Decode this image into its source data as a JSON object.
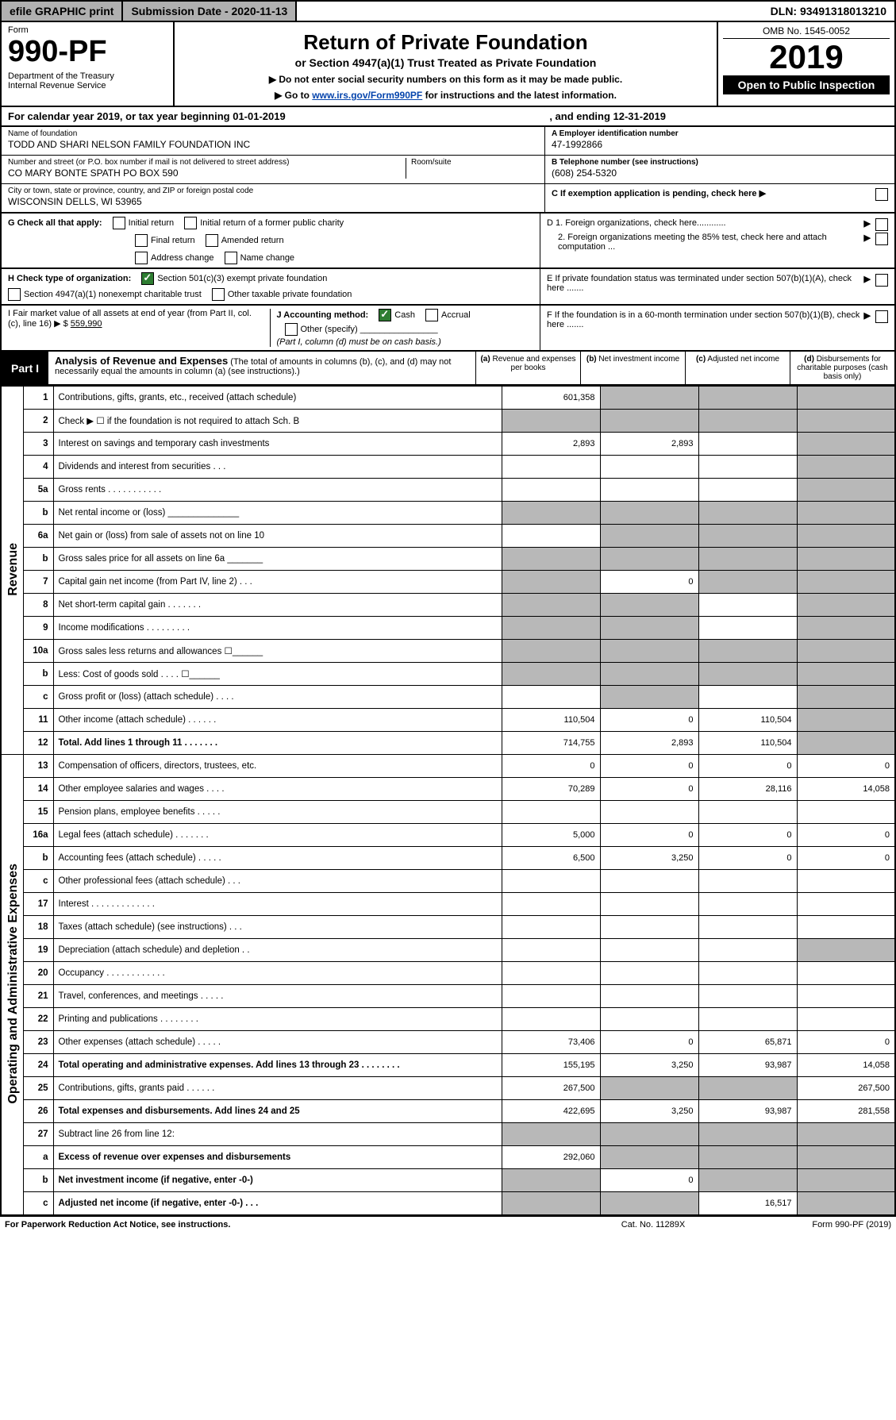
{
  "topbar": {
    "efile": "efile GRAPHIC print",
    "submission": "Submission Date - 2020-11-13",
    "dln": "DLN: 93491318013210"
  },
  "header": {
    "form_label": "Form",
    "form_no": "990-PF",
    "dept1": "Department of the Treasury",
    "dept2": "Internal Revenue Service",
    "title": "Return of Private Foundation",
    "subtitle": "or Section 4947(a)(1) Trust Treated as Private Foundation",
    "note1": "▶ Do not enter social security numbers on this form as it may be made public.",
    "note2_pre": "▶ Go to ",
    "note2_link": "www.irs.gov/Form990PF",
    "note2_post": " for instructions and the latest information.",
    "omb": "OMB No. 1545-0052",
    "year": "2019",
    "otp": "Open to Public Inspection"
  },
  "calrow": {
    "pre": "For calendar year 2019, or tax year beginning 01-01-2019",
    "end": ", and ending 12-31-2019"
  },
  "id": {
    "name_lbl": "Name of foundation",
    "name": "TODD AND SHARI NELSON FAMILY FOUNDATION INC",
    "addr_lbl": "Number and street (or P.O. box number if mail is not delivered to street address)",
    "addr": "CO MARY BONTE SPATH PO BOX 590",
    "room_lbl": "Room/suite",
    "city_lbl": "City or town, state or province, country, and ZIP or foreign postal code",
    "city": "WISCONSIN DELLS, WI  53965",
    "ein_lbl": "A Employer identification number",
    "ein": "47-1992866",
    "tel_lbl": "B Telephone number (see instructions)",
    "tel": "(608) 254-5320",
    "c_lbl": "C If exemption application is pending, check here ▶"
  },
  "g": {
    "label": "G Check all that apply:",
    "initial": "Initial return",
    "initial_former": "Initial return of a former public charity",
    "final": "Final return",
    "amended": "Amended return",
    "addrchg": "Address change",
    "namechg": "Name change"
  },
  "h": {
    "label": "H Check type of organization:",
    "s501": "Section 501(c)(3) exempt private foundation",
    "s4947": "Section 4947(a)(1) nonexempt charitable trust",
    "other": "Other taxable private foundation"
  },
  "d": {
    "d1": "D 1. Foreign organizations, check here............",
    "d2": "2. Foreign organizations meeting the 85% test, check here and attach computation ...",
    "e": "E  If private foundation status was terminated under section 507(b)(1)(A), check here .......",
    "f": "F  If the foundation is in a 60-month termination under section 507(b)(1)(B), check here ......."
  },
  "ij": {
    "i_lbl": "I Fair market value of all assets at end of year (from Part II, col. (c), line 16) ▶ $",
    "i_val": "559,990",
    "j_lbl": "J Accounting method:",
    "cash": "Cash",
    "accrual": "Accrual",
    "other": "Other (specify)",
    "note": "(Part I, column (d) must be on cash basis.)"
  },
  "part1": {
    "label": "Part I",
    "title": "Analysis of Revenue and Expenses",
    "sub": "(The total of amounts in columns (b), (c), and (d) may not necessarily equal the amounts in column (a) (see instructions).)",
    "col_a": "Revenue and expenses per books",
    "col_b": "Net investment income",
    "col_c": "Adjusted net income",
    "col_d": "Disbursements for charitable purposes (cash basis only)"
  },
  "sections": {
    "revenue": "Revenue",
    "expenses": "Operating and Administrative Expenses"
  },
  "rows": {
    "r1": {
      "n": "1",
      "d": "Contributions, gifts, grants, etc., received (attach schedule)",
      "a": "601,358",
      "bg": [
        "",
        "g",
        "g",
        "g"
      ]
    },
    "r2": {
      "n": "2",
      "d": "Check ▶ ☐ if the foundation is not required to attach Sch. B",
      "bg": [
        "g",
        "g",
        "g",
        "g"
      ]
    },
    "r3": {
      "n": "3",
      "d": "Interest on savings and temporary cash investments",
      "a": "2,893",
      "b": "2,893",
      "bg": [
        "",
        "",
        "",
        "g"
      ]
    },
    "r4": {
      "n": "4",
      "d": "Dividends and interest from securities   .   .   .",
      "bg": [
        "",
        "",
        "",
        "g"
      ]
    },
    "r5a": {
      "n": "5a",
      "d": "Gross rents   .   .   .   .   .   .   .   .   .   .   .",
      "bg": [
        "",
        "",
        "",
        "g"
      ]
    },
    "r5b": {
      "n": "b",
      "d": "Net rental income or (loss) ______________",
      "bg": [
        "g",
        "g",
        "g",
        "g"
      ]
    },
    "r6a": {
      "n": "6a",
      "d": "Net gain or (loss) from sale of assets not on line 10",
      "bg": [
        "",
        "g",
        "g",
        "g"
      ]
    },
    "r6b": {
      "n": "b",
      "d": "Gross sales price for all assets on line 6a _______",
      "bg": [
        "g",
        "g",
        "g",
        "g"
      ]
    },
    "r7": {
      "n": "7",
      "d": "Capital gain net income (from Part IV, line 2)   .   .   .",
      "b": "0",
      "bg": [
        "g",
        "",
        "g",
        "g"
      ]
    },
    "r8": {
      "n": "8",
      "d": "Net short-term capital gain   .   .   .   .   .   .   .",
      "bg": [
        "g",
        "g",
        "",
        "g"
      ]
    },
    "r9": {
      "n": "9",
      "d": "Income modifications   .   .   .   .   .   .   .   .   .",
      "bg": [
        "g",
        "g",
        "",
        "g"
      ]
    },
    "r10a": {
      "n": "10a",
      "d": "Gross sales less returns and allowances ☐______",
      "bg": [
        "g",
        "g",
        "g",
        "g"
      ]
    },
    "r10b": {
      "n": "b",
      "d": "Less: Cost of goods sold   .   .   .   . ☐______",
      "bg": [
        "g",
        "g",
        "g",
        "g"
      ]
    },
    "r10c": {
      "n": "c",
      "d": "Gross profit or (loss) (attach schedule)   .   .   .   .",
      "bg": [
        "",
        "g",
        "",
        "g"
      ]
    },
    "r11": {
      "n": "11",
      "d": "Other income (attach schedule)   .   .   .   .   .   .",
      "a": "110,504",
      "b": "0",
      "c": "110,504",
      "bg": [
        "",
        "",
        "",
        "g"
      ]
    },
    "r12": {
      "n": "12",
      "d": "Total. Add lines 1 through 11   .   .   .   .   .   .   .",
      "a": "714,755",
      "b": "2,893",
      "c": "110,504",
      "bg": [
        "",
        "",
        "",
        "g"
      ],
      "bold": true
    },
    "r13": {
      "n": "13",
      "d": "Compensation of officers, directors, trustees, etc.",
      "a": "0",
      "b": "0",
      "c": "0",
      "dd": "0"
    },
    "r14": {
      "n": "14",
      "d": "Other employee salaries and wages   .   .   .   .",
      "a": "70,289",
      "b": "0",
      "c": "28,116",
      "dd": "14,058"
    },
    "r15": {
      "n": "15",
      "d": "Pension plans, employee benefits   .   .   .   .   ."
    },
    "r16a": {
      "n": "16a",
      "d": "Legal fees (attach schedule)   .   .   .   .   .   .   .",
      "a": "5,000",
      "b": "0",
      "c": "0",
      "dd": "0"
    },
    "r16b": {
      "n": "b",
      "d": "Accounting fees (attach schedule)   .   .   .   .   .",
      "a": "6,500",
      "b": "3,250",
      "c": "0",
      "dd": "0"
    },
    "r16c": {
      "n": "c",
      "d": "Other professional fees (attach schedule)   .   .   ."
    },
    "r17": {
      "n": "17",
      "d": "Interest   .   .   .   .   .   .   .   .   .   .   .   .   ."
    },
    "r18": {
      "n": "18",
      "d": "Taxes (attach schedule) (see instructions)   .   .   ."
    },
    "r19": {
      "n": "19",
      "d": "Depreciation (attach schedule) and depletion   .   .",
      "bg": [
        "",
        "",
        "",
        "g"
      ]
    },
    "r20": {
      "n": "20",
      "d": "Occupancy   .   .   .   .   .   .   .   .   .   .   .   ."
    },
    "r21": {
      "n": "21",
      "d": "Travel, conferences, and meetings   .   .   .   .   ."
    },
    "r22": {
      "n": "22",
      "d": "Printing and publications   .   .   .   .   .   .   .   ."
    },
    "r23": {
      "n": "23",
      "d": "Other expenses (attach schedule)   .   .   .   .   .",
      "a": "73,406",
      "b": "0",
      "c": "65,871",
      "dd": "0"
    },
    "r24": {
      "n": "24",
      "d": "Total operating and administrative expenses. Add lines 13 through 23   .   .   .   .   .   .   .   .",
      "a": "155,195",
      "b": "3,250",
      "c": "93,987",
      "dd": "14,058",
      "bold": true
    },
    "r25": {
      "n": "25",
      "d": "Contributions, gifts, grants paid   .   .   .   .   .   .",
      "a": "267,500",
      "dd": "267,500",
      "bg": [
        "",
        "g",
        "g",
        ""
      ]
    },
    "r26": {
      "n": "26",
      "d": "Total expenses and disbursements. Add lines 24 and 25",
      "a": "422,695",
      "b": "3,250",
      "c": "93,987",
      "dd": "281,558",
      "bold": true
    },
    "r27": {
      "n": "27",
      "d": "Subtract line 26 from line 12:",
      "bg": [
        "g",
        "g",
        "g",
        "g"
      ]
    },
    "r27a": {
      "n": "a",
      "d": "Excess of revenue over expenses and disbursements",
      "a": "292,060",
      "bg": [
        "",
        "g",
        "g",
        "g"
      ],
      "bold": true
    },
    "r27b": {
      "n": "b",
      "d": "Net investment income (if negative, enter -0-)",
      "b": "0",
      "bg": [
        "g",
        "",
        "g",
        "g"
      ],
      "bold": true
    },
    "r27c": {
      "n": "c",
      "d": "Adjusted net income (if negative, enter -0-)   .   .   .",
      "c": "16,517",
      "bg": [
        "g",
        "g",
        "",
        "g"
      ],
      "bold": true
    }
  },
  "footer": {
    "pra": "For Paperwork Reduction Act Notice, see instructions.",
    "cat": "Cat. No. 11289X",
    "form": "Form 990-PF (2019)"
  }
}
